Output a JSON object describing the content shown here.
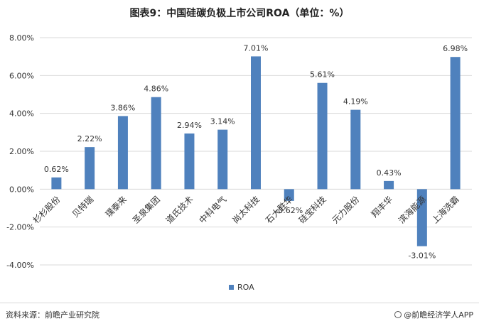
{
  "title": "图表9：中国硅碳负极上市公司ROA（单位：%）",
  "footer": {
    "source": "资料来源：前瞻产业研究院",
    "brand": "@前瞻经济学人APP"
  },
  "colors": {
    "bar": "#4f81bd",
    "grid": "#d9d9d9",
    "text": "#333333"
  },
  "chart_data": {
    "type": "bar",
    "categories": [
      "杉杉股份",
      "贝特瑞",
      "璞泰来",
      "圣泉集团",
      "道氏技术",
      "中科电气",
      "尚太科技",
      "石大胜华",
      "硅宝科技",
      "元力股份",
      "翔丰华",
      "滨海能源",
      "上海洗霸"
    ],
    "series": [
      {
        "name": "ROA",
        "values": [
          0.62,
          2.22,
          3.86,
          4.86,
          2.94,
          3.14,
          7.01,
          -0.62,
          5.61,
          4.19,
          0.43,
          -3.01,
          6.98
        ],
        "labels": [
          "0.62%",
          "2.22%",
          "3.86%",
          "4.86%",
          "2.94%",
          "3.14%",
          "7.01%",
          "-0.62%",
          "5.61%",
          "4.19%",
          "0.43%",
          "-3.01%",
          "6.98%"
        ]
      }
    ],
    "yticks": [
      8,
      6,
      4,
      2,
      0,
      -2,
      -4
    ],
    "ytick_labels": [
      "8.00%",
      "6.00%",
      "4.00%",
      "2.00%",
      "0.00%",
      "-2.00%",
      "-4.00%"
    ],
    "ylim": [
      -4,
      8
    ],
    "grid": true,
    "legend": "bottom-center"
  }
}
